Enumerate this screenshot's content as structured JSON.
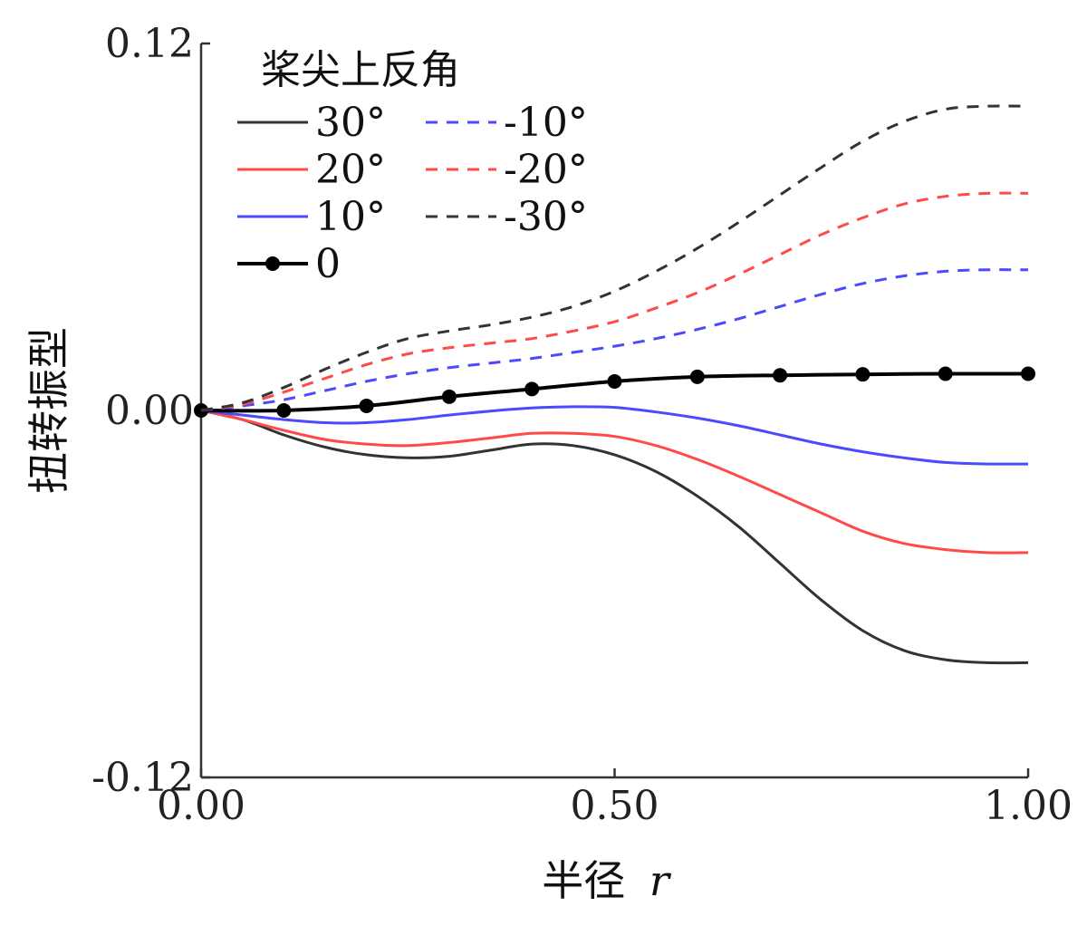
{
  "chart_data": {
    "type": "line",
    "title": "",
    "xlabel": "半径",
    "xlabel_var": "r",
    "ylabel": "扭转振型",
    "xlim": [
      0,
      1
    ],
    "ylim": [
      -0.12,
      0.12
    ],
    "x_ticks": [
      "0.00",
      "0.50",
      "1.00"
    ],
    "y_ticks": [
      "0.12",
      "0.00",
      "-0.12"
    ],
    "legend_title": "桨尖上反角",
    "series": [
      {
        "name": "30°",
        "color": "#333333",
        "dash": "solid",
        "marker": false,
        "x": [
          0,
          0.05,
          0.1,
          0.15,
          0.2,
          0.25,
          0.3,
          0.35,
          0.4,
          0.45,
          0.5,
          0.55,
          0.6,
          0.65,
          0.7,
          0.75,
          0.8,
          0.85,
          0.9,
          0.95,
          1.0
        ],
        "y": [
          0,
          -0.003,
          -0.008,
          -0.012,
          -0.0145,
          -0.0155,
          -0.015,
          -0.013,
          -0.011,
          -0.0115,
          -0.0145,
          -0.02,
          -0.028,
          -0.038,
          -0.05,
          -0.062,
          -0.072,
          -0.0785,
          -0.0815,
          -0.0825,
          -0.0825
        ]
      },
      {
        "name": "20°",
        "color": "#ff4a4a",
        "dash": "solid",
        "marker": false,
        "x": [
          0,
          0.05,
          0.1,
          0.15,
          0.2,
          0.25,
          0.3,
          0.35,
          0.4,
          0.45,
          0.5,
          0.55,
          0.6,
          0.65,
          0.7,
          0.75,
          0.8,
          0.85,
          0.9,
          0.95,
          1.0
        ],
        "y": [
          0,
          -0.003,
          -0.0065,
          -0.0095,
          -0.011,
          -0.0115,
          -0.0105,
          -0.009,
          -0.0075,
          -0.0075,
          -0.0085,
          -0.0115,
          -0.016,
          -0.0215,
          -0.0275,
          -0.0335,
          -0.0395,
          -0.0435,
          -0.0455,
          -0.0465,
          -0.0465
        ]
      },
      {
        "name": "10°",
        "color": "#4a4aff",
        "dash": "solid",
        "marker": false,
        "x": [
          0,
          0.05,
          0.1,
          0.15,
          0.2,
          0.25,
          0.3,
          0.35,
          0.4,
          0.45,
          0.5,
          0.55,
          0.6,
          0.65,
          0.7,
          0.75,
          0.8,
          0.85,
          0.9,
          0.95,
          1.0
        ],
        "y": [
          0,
          -0.0015,
          -0.003,
          -0.004,
          -0.004,
          -0.003,
          -0.0015,
          -0.0002,
          0.0008,
          0.0012,
          0.001,
          -0.0005,
          -0.0025,
          -0.005,
          -0.008,
          -0.011,
          -0.0135,
          -0.0155,
          -0.017,
          -0.0175,
          -0.0175
        ]
      },
      {
        "name": "0",
        "color": "#000000",
        "dash": "solid",
        "marker": true,
        "x": [
          0,
          0.1,
          0.2,
          0.3,
          0.4,
          0.5,
          0.6,
          0.7,
          0.8,
          0.9,
          1.0
        ],
        "y": [
          0,
          0.0,
          0.0015,
          0.0045,
          0.007,
          0.0095,
          0.011,
          0.0115,
          0.0118,
          0.012,
          0.012
        ]
      },
      {
        "name": "-10°",
        "color": "#4a4aff",
        "dash": "dashed",
        "marker": false,
        "x": [
          0,
          0.05,
          0.1,
          0.15,
          0.2,
          0.25,
          0.3,
          0.35,
          0.4,
          0.45,
          0.5,
          0.55,
          0.6,
          0.65,
          0.7,
          0.75,
          0.8,
          0.85,
          0.9,
          0.95,
          1.0
        ],
        "y": [
          0,
          0.0015,
          0.0035,
          0.0065,
          0.0095,
          0.012,
          0.014,
          0.0155,
          0.017,
          0.019,
          0.021,
          0.0235,
          0.0265,
          0.03,
          0.034,
          0.038,
          0.0415,
          0.044,
          0.0455,
          0.046,
          0.046
        ]
      },
      {
        "name": "-20°",
        "color": "#ff4a4a",
        "dash": "dashed",
        "marker": false,
        "x": [
          0,
          0.05,
          0.1,
          0.15,
          0.2,
          0.25,
          0.3,
          0.35,
          0.4,
          0.45,
          0.5,
          0.55,
          0.6,
          0.65,
          0.7,
          0.75,
          0.8,
          0.85,
          0.9,
          0.95,
          1.0
        ],
        "y": [
          0,
          0.002,
          0.006,
          0.0105,
          0.015,
          0.0185,
          0.0205,
          0.022,
          0.0235,
          0.026,
          0.029,
          0.0335,
          0.0385,
          0.0445,
          0.051,
          0.0575,
          0.063,
          0.0675,
          0.07,
          0.071,
          0.071
        ]
      },
      {
        "name": "-30°",
        "color": "#333333",
        "dash": "dashed",
        "marker": false,
        "x": [
          0,
          0.05,
          0.1,
          0.15,
          0.2,
          0.25,
          0.3,
          0.35,
          0.4,
          0.45,
          0.5,
          0.55,
          0.6,
          0.65,
          0.7,
          0.75,
          0.8,
          0.85,
          0.9,
          0.95,
          1.0
        ],
        "y": [
          0,
          0.0025,
          0.0075,
          0.0135,
          0.019,
          0.0235,
          0.026,
          0.028,
          0.0305,
          0.034,
          0.039,
          0.0455,
          0.053,
          0.0615,
          0.0705,
          0.0795,
          0.088,
          0.0945,
          0.0985,
          0.0995,
          0.0995
        ]
      }
    ]
  }
}
